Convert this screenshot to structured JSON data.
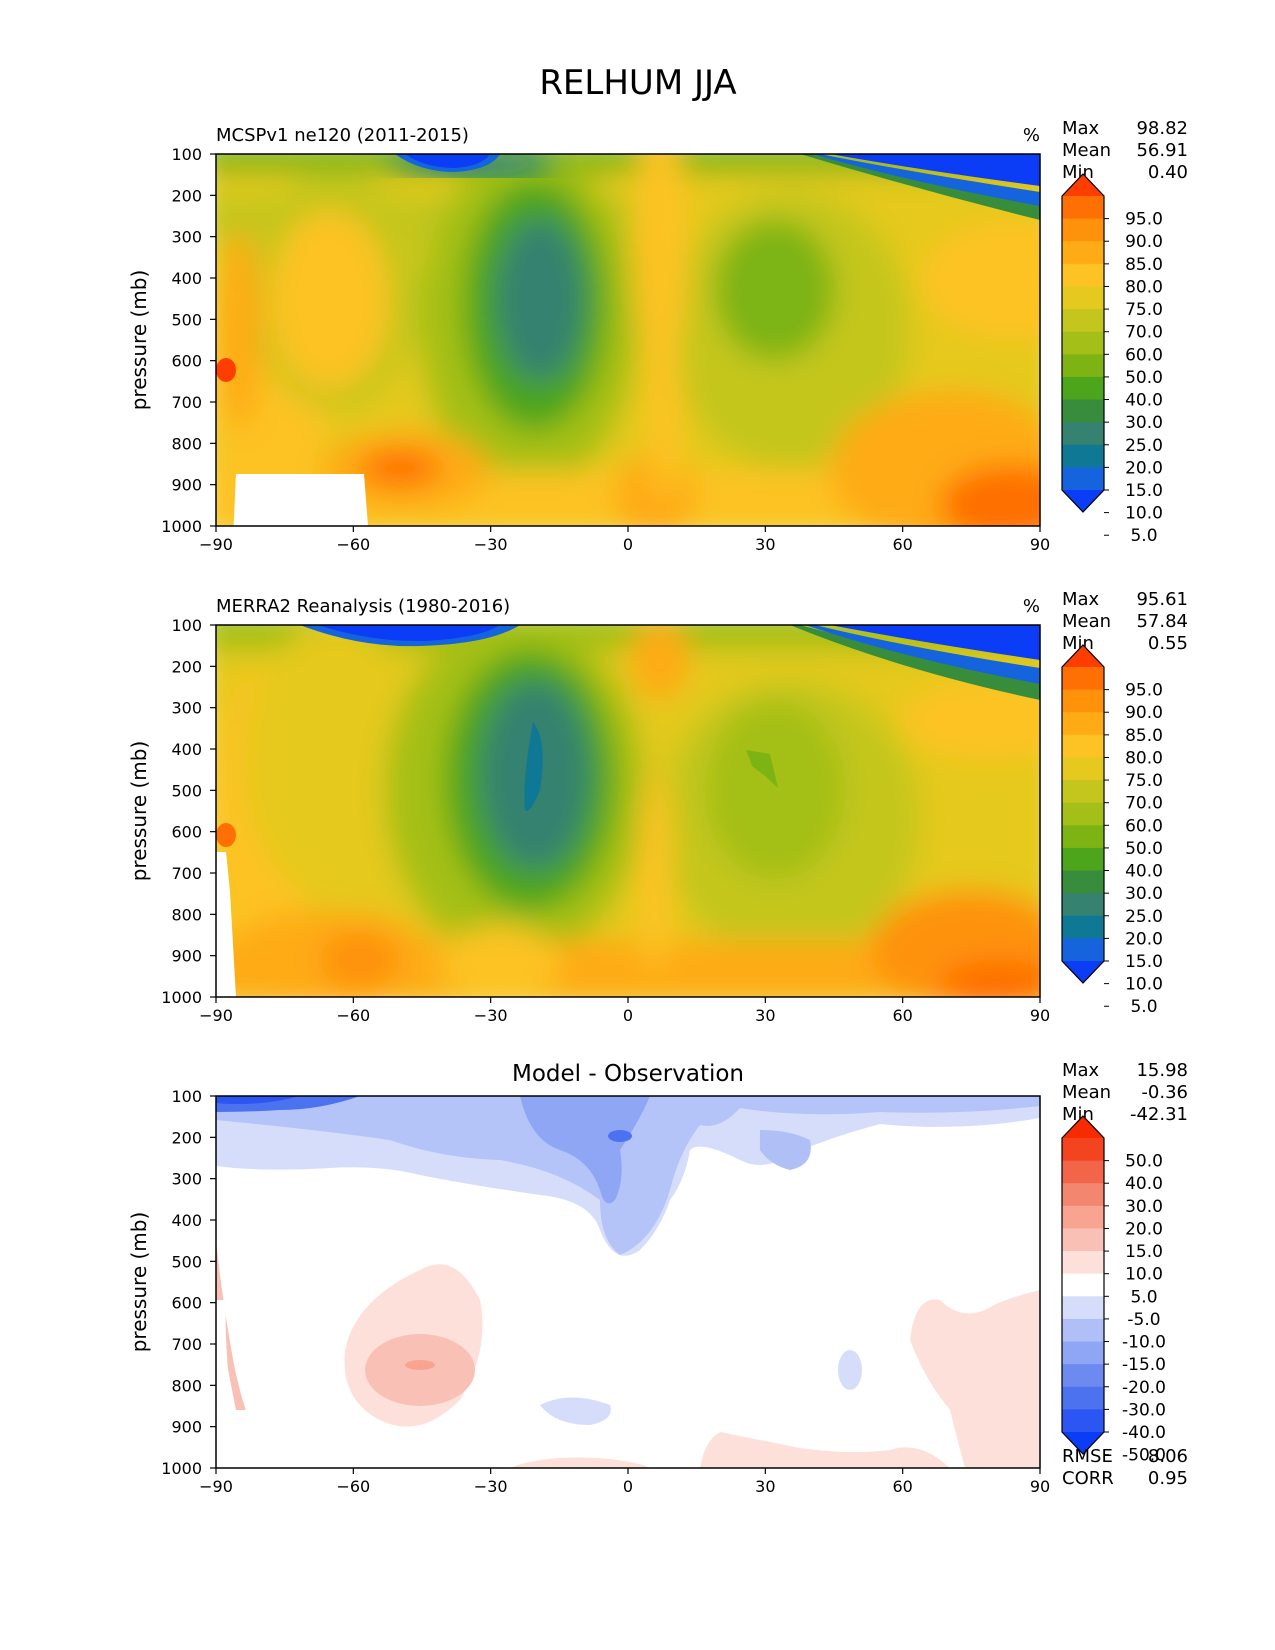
{
  "figure": {
    "title": "RELHUM JJA"
  },
  "palettes": {
    "abs": [
      "#0a3df5",
      "#1564dd",
      "#0f7895",
      "#368270",
      "#388d3c",
      "#4ca51a",
      "#7db414",
      "#a4bf17",
      "#c4c61e",
      "#e5c91f",
      "#fdc324",
      "#feab16",
      "#fe920b",
      "#fe7004",
      "#fe3d00"
    ],
    "diff": [
      "#0a3df5",
      "#2c56f2",
      "#4c72ef",
      "#6d8af1",
      "#8ea6f4",
      "#b0c0f7",
      "#d6ddfb",
      "#ffffff",
      "#fde0da",
      "#f9c1b6",
      "#f8a491",
      "#f3866f",
      "#f36549",
      "#f3431f",
      "#f82a00"
    ]
  },
  "panels": [
    {
      "id": "model",
      "subtitle": "MCSPv1 ne120 (2011-2015)",
      "units": "%",
      "stats": {
        "max_label": "Max",
        "max": "98.82",
        "mean_label": "Mean",
        "mean": "56.91",
        "min_label": "Min",
        "min": "0.40"
      },
      "colorbar_labels": [
        "95.0",
        "90.0",
        "85.0",
        "80.0",
        "75.0",
        "70.0",
        "60.0",
        "50.0",
        "40.0",
        "30.0",
        "25.0",
        "20.0",
        "15.0",
        "10.0",
        "5.0"
      ]
    },
    {
      "id": "obs",
      "subtitle": "MERRA2 Reanalysis (1980-2016)",
      "units": "%",
      "stats": {
        "max_label": "Max",
        "max": "95.61",
        "mean_label": "Mean",
        "mean": "57.84",
        "min_label": "Min",
        "min": "0.55"
      },
      "colorbar_labels": [
        "95.0",
        "90.0",
        "85.0",
        "80.0",
        "75.0",
        "70.0",
        "60.0",
        "50.0",
        "40.0",
        "30.0",
        "25.0",
        "20.0",
        "15.0",
        "10.0",
        "5.0"
      ]
    },
    {
      "id": "diff",
      "title": "Model - Observation",
      "stats": {
        "max_label": "Max",
        "max": "15.98",
        "mean_label": "Mean",
        "mean": "-0.36",
        "min_label": "Min",
        "min": "-42.31"
      },
      "colorbar_labels": [
        "50.0",
        "40.0",
        "30.0",
        "20.0",
        "15.0",
        "10.0",
        "5.0",
        "-5.0",
        "-10.0",
        "-15.0",
        "-20.0",
        "-30.0",
        "-40.0",
        "-50.0"
      ],
      "metrics": {
        "rmse_label": "RMSE",
        "rmse": "8.06",
        "corr_label": "CORR",
        "corr": "0.95"
      }
    }
  ],
  "chart_data": [
    {
      "type": "heatmap",
      "subtitle": "MCSPv1 ne120 (2011-2015)",
      "ylabel": "pressure (mb)",
      "x_ticks": [
        "−90",
        "−60",
        "−30",
        "0",
        "30",
        "60",
        "90"
      ],
      "y_ticks": [
        "100",
        "200",
        "300",
        "400",
        "500",
        "600",
        "700",
        "800",
        "900",
        "1000"
      ],
      "xlim": [
        -90,
        90
      ],
      "ylim": [
        1000,
        100
      ],
      "contour_levels": [
        5,
        10,
        15,
        20,
        25,
        30,
        40,
        50,
        60,
        70,
        75,
        80,
        85,
        90,
        95
      ]
    },
    {
      "type": "heatmap",
      "subtitle": "MERRA2 Reanalysis (1980-2016)",
      "ylabel": "pressure (mb)",
      "x_ticks": [
        "−90",
        "−60",
        "−30",
        "0",
        "30",
        "60",
        "90"
      ],
      "y_ticks": [
        "100",
        "200",
        "300",
        "400",
        "500",
        "600",
        "700",
        "800",
        "900",
        "1000"
      ],
      "xlim": [
        -90,
        90
      ],
      "ylim": [
        1000,
        100
      ],
      "contour_levels": [
        5,
        10,
        15,
        20,
        25,
        30,
        40,
        50,
        60,
        70,
        75,
        80,
        85,
        90,
        95
      ]
    },
    {
      "type": "heatmap",
      "title": "Model - Observation",
      "ylabel": "pressure (mb)",
      "x_ticks": [
        "−90",
        "−60",
        "−30",
        "0",
        "30",
        "60",
        "90"
      ],
      "y_ticks": [
        "100",
        "200",
        "300",
        "400",
        "500",
        "600",
        "700",
        "800",
        "900",
        "1000"
      ],
      "xlim": [
        -90,
        90
      ],
      "ylim": [
        1000,
        100
      ],
      "contour_levels": [
        -50,
        -40,
        -30,
        -20,
        -15,
        -10,
        -5,
        5,
        10,
        15,
        20,
        30,
        40,
        50
      ]
    }
  ]
}
